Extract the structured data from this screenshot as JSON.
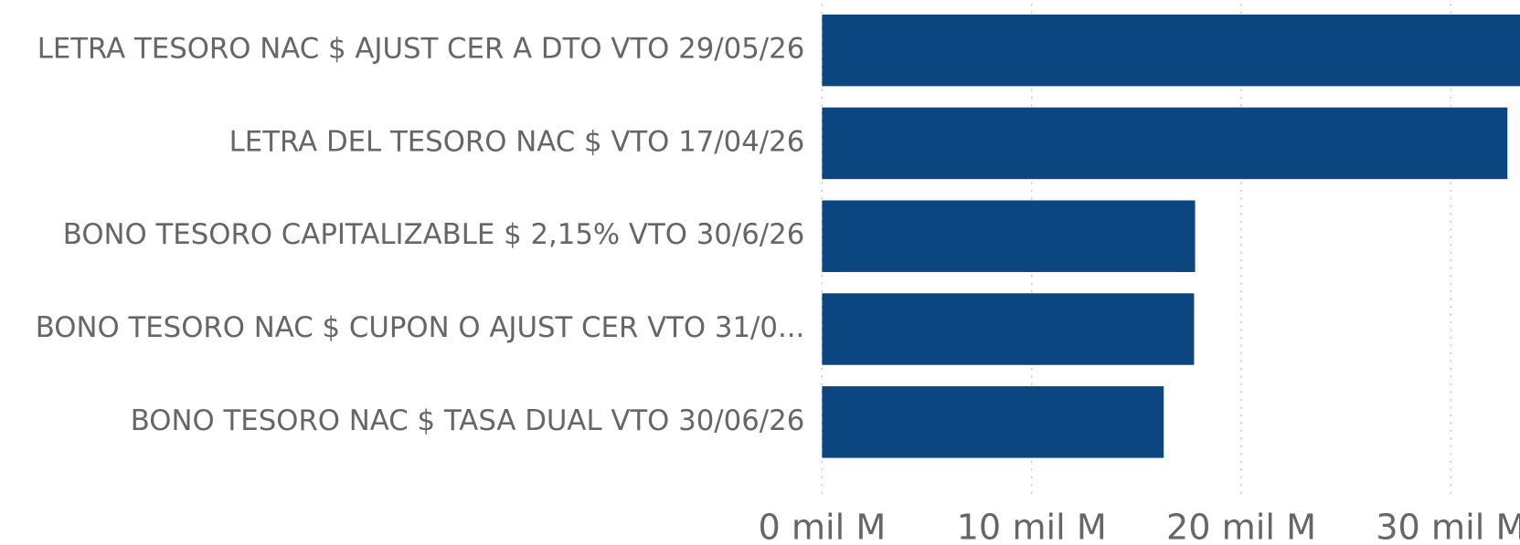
{
  "chart_data": {
    "type": "bar",
    "orientation": "horizontal",
    "categories": [
      "LETRA TESORO NAC $ AJUST CER A DTO VTO 29/05/26",
      "LETRA DEL TESORO NAC $ VTO 17/04/26",
      "BONO TESORO CAPITALIZABLE $ 2,15% VTO 30/6/26",
      "BONO TESORO NAC $ CUPON O AJUST CER VTO 31/0...",
      "BONO TESORO NAC $ TASA DUAL VTO 30/06/26"
    ],
    "values": [
      33.3,
      32.7,
      17.8,
      17.75,
      16.3
    ],
    "color": "#0b4680",
    "xlim": [
      0,
      33.3
    ],
    "xticks": [
      {
        "value": 0,
        "label": "0 mil M"
      },
      {
        "value": 10,
        "label": "10 mil M"
      },
      {
        "value": 20,
        "label": "20 mil M"
      },
      {
        "value": 30,
        "label": "30 mil M"
      }
    ],
    "grid": true
  }
}
